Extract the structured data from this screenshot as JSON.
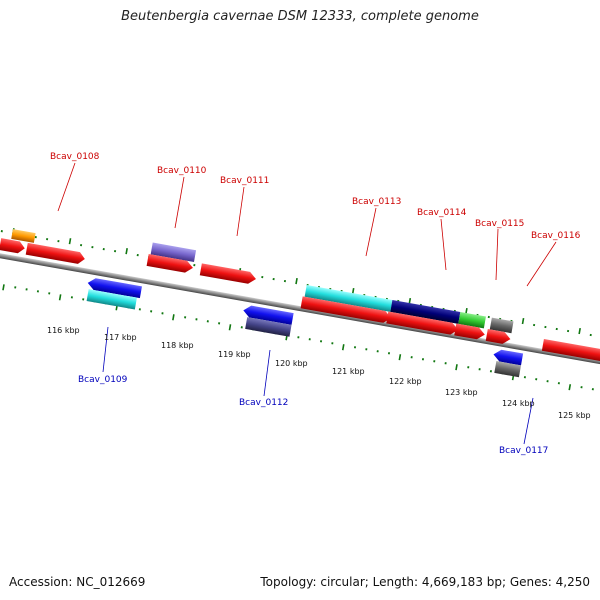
{
  "title": "Beutenbergia cavernae DSM 12333, complete genome",
  "footer": {
    "accession": "Accession: NC_012669",
    "info": "Topology: circular; Length: 4,669,183 bp; Genes: 4,250"
  },
  "kbp_labels": [
    "116 kbp",
    "117 kbp",
    "118 kbp",
    "119 kbp",
    "120 kbp",
    "121 kbp",
    "122 kbp",
    "123 kbp",
    "124 kbp",
    "125 kbp"
  ],
  "gene_labels": {
    "bcav_0108": "Bcav_0108",
    "bcav_0109": "Bcav_0109",
    "bcav_0110": "Bcav_0110",
    "bcav_0111": "Bcav_0111",
    "bcav_0112": "Bcav_0112",
    "bcav_0113": "Bcav_0113",
    "bcav_0114": "Bcav_0114",
    "bcav_0115": "Bcav_0115",
    "bcav_0116": "Bcav_0116",
    "bcav_0117": "Bcav_0117"
  },
  "colors": {
    "red": "#ee1111",
    "blue": "#1111ee",
    "cyan": "#22dddd",
    "navy": "#000077",
    "green": "#33cc33",
    "gray": "#666666",
    "orange": "#ff9900",
    "purple": "#7766cc",
    "darkpurple": "#444488",
    "backbone": "#888888",
    "ticks": "#117711",
    "label_red": "#cc0000",
    "label_blue": "#0000bb"
  }
}
